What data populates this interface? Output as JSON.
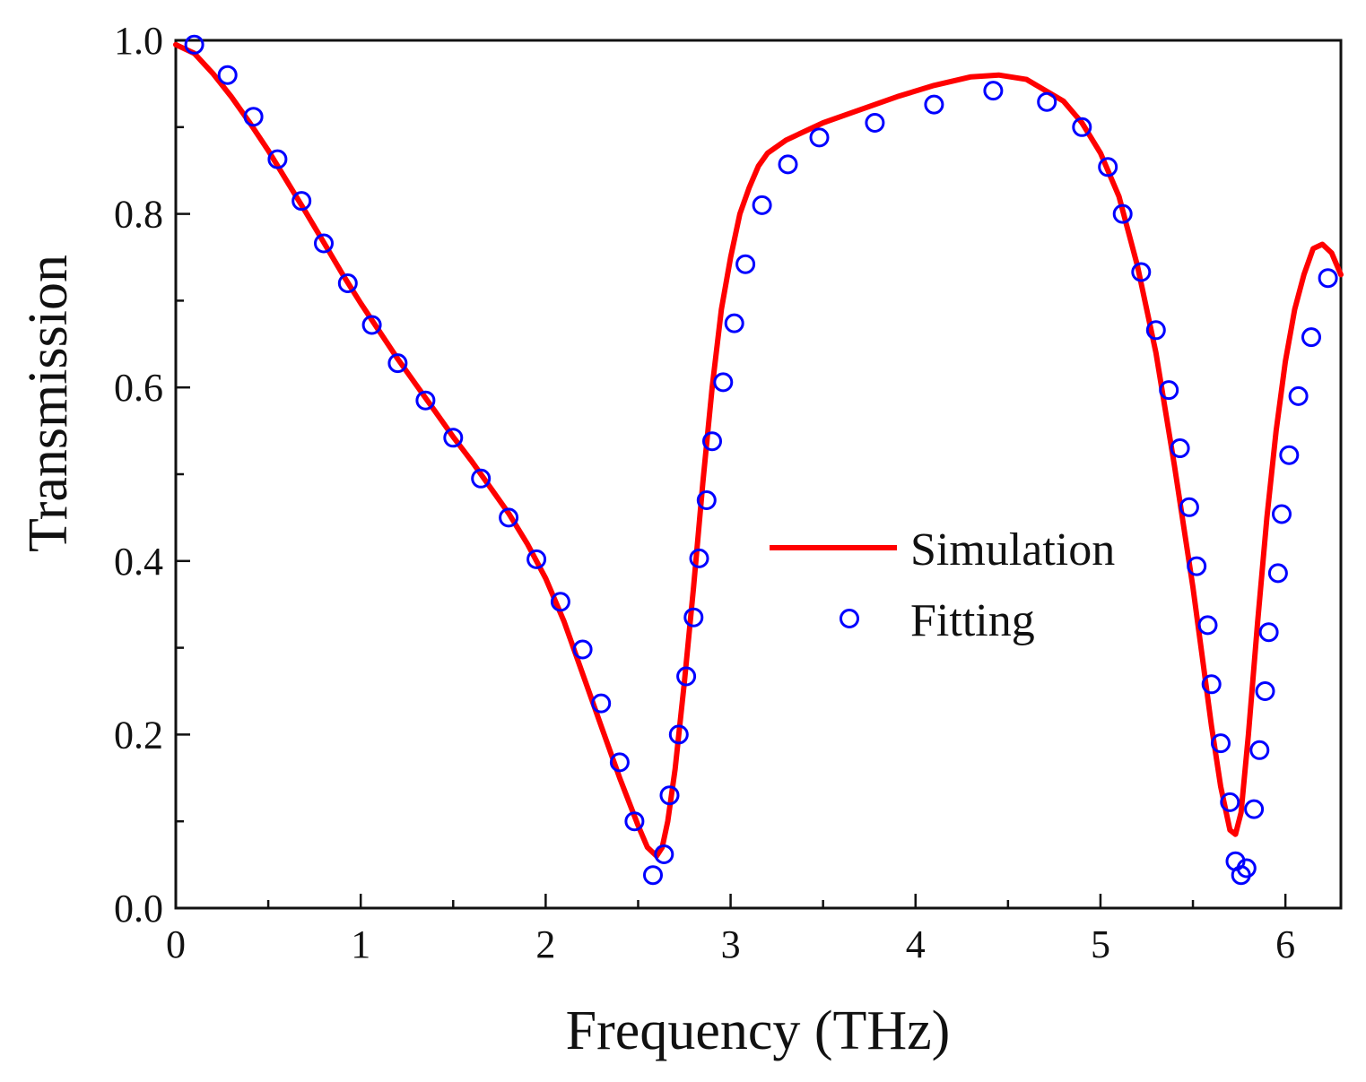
{
  "chart_data": {
    "type": "line",
    "xlabel": "Frequency (THz)",
    "ylabel": "Transmission",
    "xlim": [
      0,
      6.3
    ],
    "ylim": [
      0.0,
      1.0
    ],
    "xticks": [
      0,
      1,
      2,
      3,
      4,
      5,
      6
    ],
    "xtick_labels": [
      "0",
      "1",
      "2",
      "3",
      "4",
      "5",
      "6"
    ],
    "yticks": [
      0.0,
      0.2,
      0.4,
      0.6,
      0.8,
      1.0
    ],
    "ytick_labels": [
      "0.0",
      "0.2",
      "0.4",
      "0.6",
      "0.8",
      "1.0"
    ],
    "grid": false,
    "legend_position": "center-right",
    "series": [
      {
        "name": "Simulation",
        "style": "line",
        "color": "#ff0000",
        "x": [
          0.0,
          0.1,
          0.2,
          0.3,
          0.4,
          0.5,
          0.6,
          0.7,
          0.8,
          0.9,
          1.0,
          1.1,
          1.2,
          1.3,
          1.4,
          1.5,
          1.6,
          1.7,
          1.8,
          1.9,
          2.0,
          2.1,
          2.2,
          2.3,
          2.4,
          2.5,
          2.55,
          2.6,
          2.63,
          2.66,
          2.7,
          2.75,
          2.8,
          2.85,
          2.9,
          2.95,
          3.0,
          3.05,
          3.1,
          3.15,
          3.2,
          3.3,
          3.4,
          3.5,
          3.7,
          3.9,
          4.1,
          4.3,
          4.45,
          4.6,
          4.8,
          4.9,
          5.0,
          5.1,
          5.2,
          5.3,
          5.4,
          5.5,
          5.55,
          5.6,
          5.65,
          5.7,
          5.73,
          5.76,
          5.8,
          5.85,
          5.9,
          5.95,
          6.0,
          6.05,
          6.1,
          6.15,
          6.2,
          6.25,
          6.3
        ],
        "y": [
          0.995,
          0.985,
          0.962,
          0.935,
          0.905,
          0.873,
          0.838,
          0.803,
          0.767,
          0.731,
          0.697,
          0.665,
          0.633,
          0.603,
          0.573,
          0.543,
          0.515,
          0.485,
          0.455,
          0.42,
          0.38,
          0.33,
          0.27,
          0.21,
          0.15,
          0.095,
          0.07,
          0.06,
          0.07,
          0.1,
          0.16,
          0.26,
          0.37,
          0.49,
          0.6,
          0.69,
          0.75,
          0.8,
          0.83,
          0.855,
          0.87,
          0.885,
          0.895,
          0.905,
          0.92,
          0.935,
          0.948,
          0.958,
          0.96,
          0.955,
          0.93,
          0.905,
          0.87,
          0.82,
          0.74,
          0.64,
          0.51,
          0.37,
          0.29,
          0.21,
          0.14,
          0.09,
          0.085,
          0.11,
          0.2,
          0.33,
          0.45,
          0.55,
          0.63,
          0.69,
          0.73,
          0.76,
          0.765,
          0.755,
          0.73
        ]
      },
      {
        "name": "Fitting",
        "style": "marker",
        "color": "#0000ff",
        "x": [
          0.1,
          0.28,
          0.42,
          0.55,
          0.68,
          0.8,
          0.93,
          1.06,
          1.2,
          1.35,
          1.5,
          1.65,
          1.8,
          1.95,
          2.08,
          2.2,
          2.3,
          2.4,
          2.48,
          2.58,
          2.64,
          2.67,
          2.72,
          2.76,
          2.8,
          2.83,
          2.87,
          2.9,
          2.96,
          3.02,
          3.08,
          3.17,
          3.31,
          3.48,
          3.78,
          4.1,
          4.42,
          4.71,
          4.9,
          5.04,
          5.12,
          5.22,
          5.3,
          5.37,
          5.43,
          5.48,
          5.52,
          5.58,
          5.6,
          5.65,
          5.7,
          5.73,
          5.76,
          5.79,
          5.83,
          5.86,
          5.89,
          5.91,
          5.96,
          5.98,
          6.02,
          6.07,
          6.14,
          6.23
        ],
        "y": [
          0.995,
          0.96,
          0.912,
          0.863,
          0.815,
          0.766,
          0.72,
          0.672,
          0.628,
          0.585,
          0.542,
          0.495,
          0.45,
          0.402,
          0.353,
          0.298,
          0.236,
          0.168,
          0.1,
          0.038,
          0.062,
          0.13,
          0.2,
          0.267,
          0.335,
          0.403,
          0.47,
          0.538,
          0.606,
          0.674,
          0.742,
          0.81,
          0.857,
          0.888,
          0.905,
          0.926,
          0.942,
          0.929,
          0.9,
          0.854,
          0.8,
          0.733,
          0.666,
          0.597,
          0.53,
          0.462,
          0.394,
          0.326,
          0.258,
          0.19,
          0.122,
          0.054,
          0.038,
          0.046,
          0.114,
          0.182,
          0.25,
          0.318,
          0.386,
          0.454,
          0.522,
          0.59,
          0.658,
          0.726
        ]
      }
    ],
    "legend": [
      "Simulation",
      "Fitting"
    ]
  }
}
